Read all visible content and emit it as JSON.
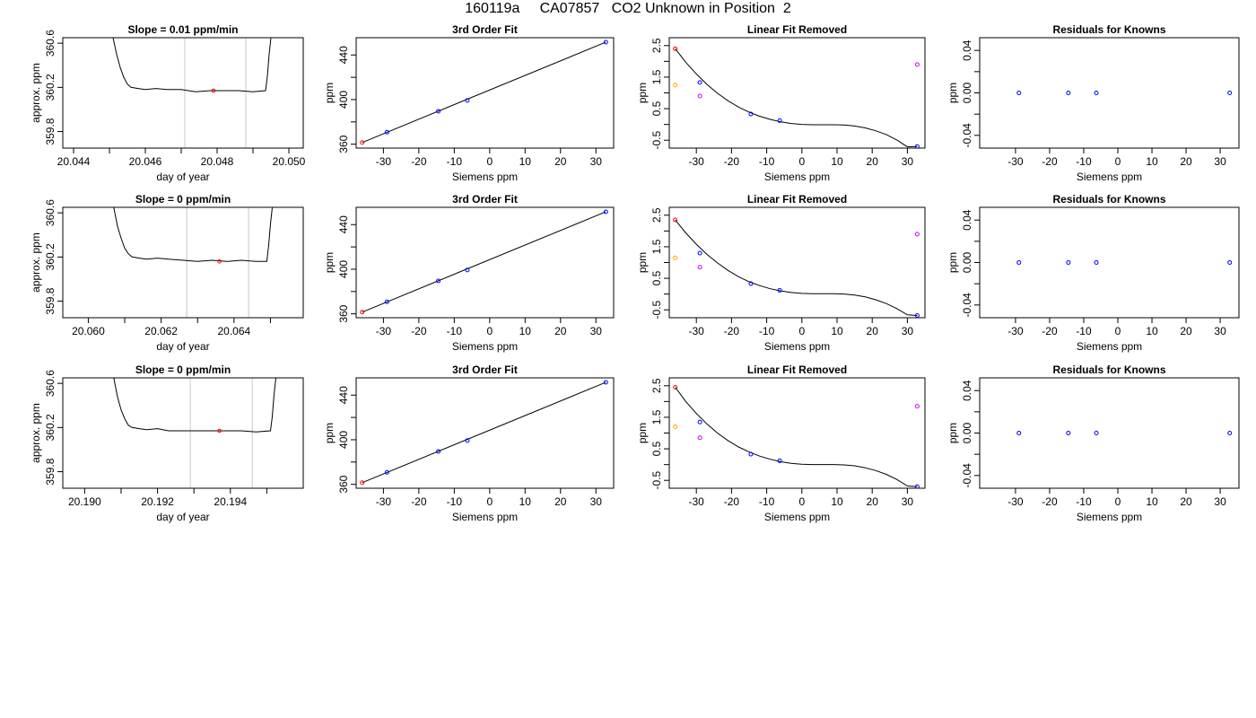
{
  "title": "160119a     CA07857   CO2 Unknown in Position  2",
  "colors": {
    "known": "#0000ff",
    "unknown": "#ff0000",
    "extra1": "#ffa500",
    "extra2": "#cc00ff",
    "window": "#c8c8c8"
  },
  "chart_data": [
    {
      "type": "line",
      "title": "Slope =  0.01  ppm/min",
      "xlabel": "day of year",
      "ylabel": "approx. ppm",
      "xlim": [
        20.0437,
        20.0504
      ],
      "ylim": [
        359.65,
        360.65
      ],
      "xticks": [
        "20.044",
        "20.046",
        "20.048",
        "20.050"
      ],
      "xtick_values": [
        20.044,
        20.046,
        20.048,
        20.05
      ],
      "yticks": [
        "359.8",
        "360.2",
        "360.6"
      ],
      "ytick_values": [
        359.8,
        360.2,
        360.6
      ],
      "minor_xticks": [
        20.045,
        20.047,
        20.049
      ],
      "window": [
        20.0471,
        20.0488
      ],
      "marker": {
        "x": 20.0479,
        "y": 360.17
      },
      "x": [
        20.0451,
        20.0452,
        20.0453,
        20.0454,
        20.0455,
        20.0456,
        20.0458,
        20.046,
        20.0463,
        20.0466,
        20.047,
        20.0474,
        20.0478,
        20.0482,
        20.0486,
        20.049,
        20.04935,
        20.0494,
        20.04945,
        20.0495
      ],
      "y": [
        360.65,
        360.5,
        360.38,
        360.29,
        360.23,
        360.2,
        360.19,
        360.18,
        360.19,
        360.18,
        360.18,
        360.16,
        360.17,
        360.17,
        360.17,
        360.16,
        360.17,
        360.3,
        360.5,
        360.65
      ]
    },
    {
      "type": "scatter",
      "title": "3rd Order Fit",
      "xlabel": "Siemens ppm",
      "ylabel": "ppm",
      "xlim": [
        -37.7,
        35.0
      ],
      "ylim": [
        356.5,
        455.5
      ],
      "xticks": [
        "-30",
        "-20",
        "-10",
        "0",
        "10",
        "20",
        "30"
      ],
      "xtick_values": [
        -30,
        -20,
        -10,
        0,
        10,
        20,
        30
      ],
      "yticks": [
        "360",
        "400",
        "440"
      ],
      "ytick_values": [
        360,
        400,
        440
      ],
      "minor_yticks": [
        380,
        420
      ],
      "fit_x": [
        -36.0,
        32.8
      ],
      "fit_y": [
        361.5,
        451.5
      ],
      "series": [
        {
          "role": "known",
          "x": [
            -29.0,
            -14.5,
            -6.3,
            32.8
          ],
          "y": [
            370.8,
            389.5,
            399.3,
            451.5
          ]
        },
        {
          "role": "unknown",
          "x": [
            -36.0
          ],
          "y": [
            361.5
          ]
        }
      ]
    },
    {
      "type": "scatter",
      "title": "Linear Fit Removed",
      "xlabel": "Siemens ppm",
      "ylabel": "ppm",
      "xlim": [
        -37.7,
        35.0
      ],
      "ylim": [
        -0.75,
        2.75
      ],
      "xticks": [
        "-30",
        "-20",
        "-10",
        "0",
        "10",
        "20",
        "30"
      ],
      "xtick_values": [
        -30,
        -20,
        -10,
        0,
        10,
        20,
        30
      ],
      "yticks": [
        "-0.5",
        "0.5",
        "1.5",
        "2.5"
      ],
      "ytick_values": [
        -0.5,
        0.5,
        1.5,
        2.5
      ],
      "minor_yticks": [
        0,
        1,
        2
      ],
      "curve_x": [
        -36.0,
        -33.0,
        -30.0,
        -27.0,
        -24.0,
        -21.0,
        -18.0,
        -15.0,
        -12.0,
        -9.0,
        -6.0,
        -3.0,
        0.0,
        3.0,
        6.0,
        9.0,
        12.0,
        15.0,
        18.0,
        21.0,
        24.0,
        27.0,
        30.0,
        32.8
      ],
      "curve_y": [
        2.4,
        1.97,
        1.6,
        1.27,
        0.99,
        0.75,
        0.55,
        0.39,
        0.26,
        0.16,
        0.08,
        0.03,
        0.0,
        -0.01,
        -0.01,
        -0.01,
        -0.02,
        -0.05,
        -0.11,
        -0.2,
        -0.32,
        -0.49,
        -0.71,
        -0.7
      ],
      "series": [
        {
          "role": "known",
          "x": [
            -29.0,
            -14.5,
            -6.3,
            32.8
          ],
          "y": [
            1.33,
            0.33,
            0.12,
            -0.7
          ]
        },
        {
          "role": "unknown",
          "x": [
            -36.0
          ],
          "y": [
            2.4
          ]
        },
        {
          "role": "extra1",
          "x": [
            -36.0
          ],
          "y": [
            1.25
          ]
        },
        {
          "role": "extra2",
          "x": [
            -29.0,
            32.8
          ],
          "y": [
            0.9,
            1.9
          ]
        }
      ]
    },
    {
      "type": "scatter",
      "title": "Residuals for Knowns",
      "xlabel": "Siemens ppm",
      "ylabel": "ppm",
      "xlim": [
        -40.5,
        35.5
      ],
      "ylim": [
        -0.052,
        0.052
      ],
      "xticks": [
        "-30",
        "-20",
        "-10",
        "0",
        "10",
        "20",
        "30"
      ],
      "xtick_values": [
        -30,
        -20,
        -10,
        0,
        10,
        20,
        30
      ],
      "yticks": [
        "-0.04",
        "0.00",
        "0.04"
      ],
      "ytick_values": [
        -0.04,
        0.0,
        0.04
      ],
      "minor_yticks": [
        -0.02,
        0.02
      ],
      "series": [
        {
          "role": "known",
          "x": [
            -29.0,
            -14.5,
            -6.3,
            32.8
          ],
          "y": [
            0.0,
            0.0,
            0.0,
            0.0
          ]
        }
      ]
    },
    {
      "type": "line",
      "title": "Slope =  0  ppm/min",
      "xlabel": "day of year",
      "ylabel": "approx. ppm",
      "xlim": [
        20.0593,
        20.0659
      ],
      "ylim": [
        359.65,
        360.65
      ],
      "xticks": [
        "20.060",
        "20.062",
        "20.064"
      ],
      "xtick_values": [
        20.06,
        20.062,
        20.064
      ],
      "yticks": [
        "359.8",
        "360.2",
        "360.6"
      ],
      "ytick_values": [
        359.8,
        360.2,
        360.6
      ],
      "minor_xticks": [
        20.061,
        20.063,
        20.065
      ],
      "window": [
        20.0627,
        20.0644
      ],
      "marker": {
        "x": 20.0636,
        "y": 360.16
      },
      "x": [
        20.0607,
        20.0608,
        20.0609,
        20.061,
        20.0611,
        20.0612,
        20.0614,
        20.0616,
        20.0619,
        20.0622,
        20.0626,
        20.063,
        20.0634,
        20.0638,
        20.0642,
        20.0646,
        20.0649,
        20.06495,
        20.065,
        20.06505
      ],
      "y": [
        360.65,
        360.48,
        360.37,
        360.28,
        360.23,
        360.2,
        360.19,
        360.18,
        360.19,
        360.18,
        360.17,
        360.16,
        360.17,
        360.16,
        360.17,
        360.16,
        360.16,
        360.3,
        360.5,
        360.65
      ]
    },
    {
      "type": "scatter",
      "title": "3rd Order Fit",
      "xlabel": "Siemens ppm",
      "ylabel": "ppm",
      "xlim": [
        -37.7,
        35.0
      ],
      "ylim": [
        356.5,
        455.5
      ],
      "xticks": [
        "-30",
        "-20",
        "-10",
        "0",
        "10",
        "20",
        "30"
      ],
      "xtick_values": [
        -30,
        -20,
        -10,
        0,
        10,
        20,
        30
      ],
      "yticks": [
        "360",
        "400",
        "440"
      ],
      "ytick_values": [
        360,
        400,
        440
      ],
      "minor_yticks": [
        380,
        420
      ],
      "fit_x": [
        -36.0,
        32.8
      ],
      "fit_y": [
        361.5,
        451.5
      ],
      "series": [
        {
          "role": "known",
          "x": [
            -29.0,
            -14.5,
            -6.3,
            32.8
          ],
          "y": [
            370.8,
            389.5,
            399.3,
            451.5
          ]
        },
        {
          "role": "unknown",
          "x": [
            -36.0
          ],
          "y": [
            361.5
          ]
        }
      ]
    },
    {
      "type": "scatter",
      "title": "Linear Fit Removed",
      "xlabel": "Siemens ppm",
      "ylabel": "ppm",
      "xlim": [
        -37.7,
        35.0
      ],
      "ylim": [
        -0.75,
        2.75
      ],
      "xticks": [
        "-30",
        "-20",
        "-10",
        "0",
        "10",
        "20",
        "30"
      ],
      "xtick_values": [
        -30,
        -20,
        -10,
        0,
        10,
        20,
        30
      ],
      "yticks": [
        "-0.5",
        "0.5",
        "1.5",
        "2.5"
      ],
      "ytick_values": [
        -0.5,
        0.5,
        1.5,
        2.5
      ],
      "minor_yticks": [
        0,
        1,
        2
      ],
      "curve_x": [
        -36.0,
        -33.0,
        -30.0,
        -27.0,
        -24.0,
        -21.0,
        -18.0,
        -15.0,
        -12.0,
        -9.0,
        -6.0,
        -3.0,
        0.0,
        3.0,
        6.0,
        9.0,
        12.0,
        15.0,
        18.0,
        21.0,
        24.0,
        27.0,
        30.0,
        32.8
      ],
      "curve_y": [
        2.35,
        1.94,
        1.58,
        1.26,
        0.99,
        0.75,
        0.55,
        0.39,
        0.27,
        0.17,
        0.1,
        0.05,
        0.02,
        0.01,
        0.01,
        0.01,
        0.0,
        -0.03,
        -0.09,
        -0.18,
        -0.3,
        -0.46,
        -0.66,
        -0.68
      ],
      "series": [
        {
          "role": "known",
          "x": [
            -29.0,
            -14.5,
            -6.3,
            32.8
          ],
          "y": [
            1.3,
            0.33,
            0.12,
            -0.68
          ]
        },
        {
          "role": "unknown",
          "x": [
            -36.0
          ],
          "y": [
            2.35
          ]
        },
        {
          "role": "extra1",
          "x": [
            -36.0
          ],
          "y": [
            1.15
          ]
        },
        {
          "role": "extra2",
          "x": [
            -29.0,
            32.8
          ],
          "y": [
            0.85,
            1.9
          ]
        }
      ]
    },
    {
      "type": "scatter",
      "title": "Residuals for Knowns",
      "xlabel": "Siemens ppm",
      "ylabel": "ppm",
      "xlim": [
        -40.5,
        35.5
      ],
      "ylim": [
        -0.052,
        0.052
      ],
      "xticks": [
        "-30",
        "-20",
        "-10",
        "0",
        "10",
        "20",
        "30"
      ],
      "xtick_values": [
        -30,
        -20,
        -10,
        0,
        10,
        20,
        30
      ],
      "yticks": [
        "-0.04",
        "0.00",
        "0.04"
      ],
      "ytick_values": [
        -0.04,
        0.0,
        0.04
      ],
      "minor_yticks": [
        -0.02,
        0.02
      ],
      "series": [
        {
          "role": "known",
          "x": [
            -29.0,
            -14.5,
            -6.3,
            32.8
          ],
          "y": [
            0.0,
            0.0,
            0.0,
            0.0
          ]
        }
      ]
    },
    {
      "type": "line",
      "title": "Slope =  0  ppm/min",
      "xlabel": "day of year",
      "ylabel": "approx. ppm",
      "xlim": [
        20.1894,
        20.196
      ],
      "ylim": [
        359.65,
        360.65
      ],
      "xticks": [
        "20.190",
        "20.192",
        "20.194"
      ],
      "xtick_values": [
        20.19,
        20.192,
        20.194
      ],
      "yticks": [
        "359.8",
        "360.2",
        "360.6"
      ],
      "ytick_values": [
        359.8,
        360.2,
        360.6
      ],
      "minor_xticks": [
        20.191,
        20.193,
        20.195
      ],
      "window": [
        20.1929,
        20.1946
      ],
      "marker": {
        "x": 20.1937,
        "y": 360.17
      },
      "x": [
        20.1908,
        20.1909,
        20.191,
        20.1911,
        20.1912,
        20.1913,
        20.1915,
        20.1917,
        20.192,
        20.1923,
        20.1927,
        20.1931,
        20.1935,
        20.1939,
        20.1943,
        20.1947,
        20.1951,
        20.19515,
        20.1952,
        20.19525
      ],
      "y": [
        360.65,
        360.48,
        360.36,
        360.28,
        360.22,
        360.2,
        360.19,
        360.18,
        360.19,
        360.17,
        360.17,
        360.17,
        360.17,
        360.17,
        360.17,
        360.16,
        360.17,
        360.3,
        360.5,
        360.65
      ]
    },
    {
      "type": "scatter",
      "title": "3rd Order Fit",
      "xlabel": "Siemens ppm",
      "ylabel": "ppm",
      "xlim": [
        -37.7,
        35.0
      ],
      "ylim": [
        356.5,
        455.5
      ],
      "xticks": [
        "-30",
        "-20",
        "-10",
        "0",
        "10",
        "20",
        "30"
      ],
      "xtick_values": [
        -30,
        -20,
        -10,
        0,
        10,
        20,
        30
      ],
      "yticks": [
        "360",
        "400",
        "440"
      ],
      "ytick_values": [
        360,
        400,
        440
      ],
      "minor_yticks": [
        380,
        420
      ],
      "fit_x": [
        -36.0,
        32.8
      ],
      "fit_y": [
        361.5,
        451.5
      ],
      "series": [
        {
          "role": "known",
          "x": [
            -29.0,
            -14.5,
            -6.3,
            32.8
          ],
          "y": [
            370.8,
            389.5,
            399.3,
            451.5
          ]
        },
        {
          "role": "unknown",
          "x": [
            -36.0
          ],
          "y": [
            361.5
          ]
        }
      ]
    },
    {
      "type": "scatter",
      "title": "Linear Fit Removed",
      "xlabel": "Siemens ppm",
      "ylabel": "ppm",
      "xlim": [
        -37.7,
        35.0
      ],
      "ylim": [
        -0.75,
        2.75
      ],
      "xticks": [
        "-30",
        "-20",
        "-10",
        "0",
        "10",
        "20",
        "30"
      ],
      "xtick_values": [
        -30,
        -20,
        -10,
        0,
        10,
        20,
        30
      ],
      "yticks": [
        "-0.5",
        "0.5",
        "1.5",
        "2.5"
      ],
      "ytick_values": [
        -0.5,
        0.5,
        1.5,
        2.5
      ],
      "minor_yticks": [
        0,
        1,
        2
      ],
      "curve_x": [
        -36.0,
        -33.0,
        -30.0,
        -27.0,
        -24.0,
        -21.0,
        -18.0,
        -15.0,
        -12.0,
        -9.0,
        -6.0,
        -3.0,
        0.0,
        3.0,
        6.0,
        9.0,
        12.0,
        15.0,
        18.0,
        21.0,
        24.0,
        27.0,
        30.0,
        32.8
      ],
      "curve_y": [
        2.45,
        2.0,
        1.62,
        1.29,
        1.0,
        0.76,
        0.56,
        0.4,
        0.27,
        0.17,
        0.09,
        0.04,
        0.01,
        0.0,
        0.0,
        0.0,
        -0.01,
        -0.04,
        -0.1,
        -0.19,
        -0.31,
        -0.47,
        -0.68,
        -0.7
      ],
      "series": [
        {
          "role": "known",
          "x": [
            -29.0,
            -14.5,
            -6.3,
            32.8
          ],
          "y": [
            1.35,
            0.33,
            0.12,
            -0.7
          ]
        },
        {
          "role": "unknown",
          "x": [
            -36.0
          ],
          "y": [
            2.45
          ]
        },
        {
          "role": "extra1",
          "x": [
            -36.0
          ],
          "y": [
            1.2
          ]
        },
        {
          "role": "extra2",
          "x": [
            -29.0,
            32.8
          ],
          "y": [
            0.85,
            1.85
          ]
        }
      ]
    },
    {
      "type": "scatter",
      "title": "Residuals for Knowns",
      "xlabel": "Siemens ppm",
      "ylabel": "ppm",
      "xlim": [
        -40.5,
        35.5
      ],
      "ylim": [
        -0.052,
        0.052
      ],
      "xticks": [
        "-30",
        "-20",
        "-10",
        "0",
        "10",
        "20",
        "30"
      ],
      "xtick_values": [
        -30,
        -20,
        -10,
        0,
        10,
        20,
        30
      ],
      "yticks": [
        "-0.04",
        "0.00",
        "0.04"
      ],
      "ytick_values": [
        -0.04,
        0.0,
        0.04
      ],
      "minor_yticks": [
        -0.02,
        0.02
      ],
      "series": [
        {
          "role": "known",
          "x": [
            -29.0,
            -14.5,
            -6.3,
            32.8
          ],
          "y": [
            0.0,
            0.0,
            0.0,
            0.0
          ]
        }
      ]
    }
  ]
}
